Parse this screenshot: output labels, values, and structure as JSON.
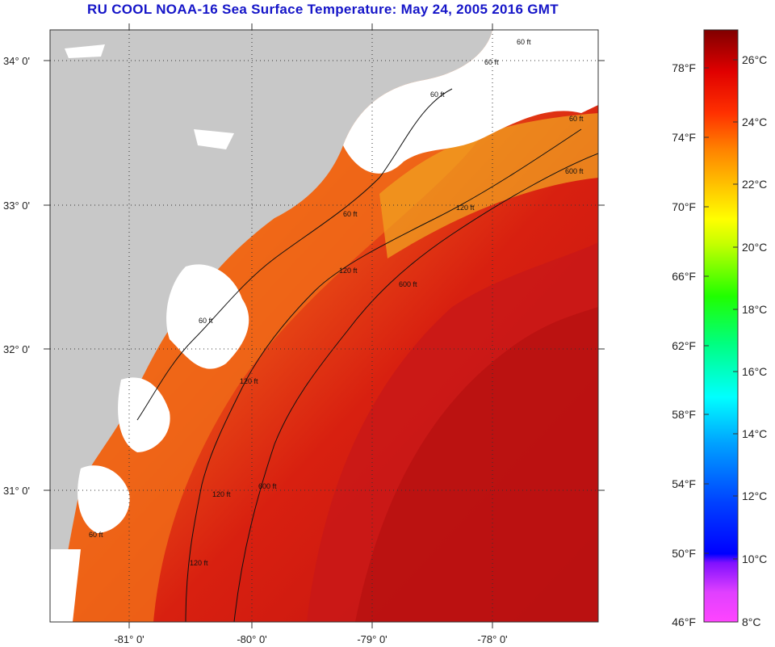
{
  "title": "RU COOL  NOAA-16  Sea Surface Temperature:  May 24, 2005 2016 GMT",
  "map": {
    "lat_labels": [
      "34° 0'",
      "33° 0'",
      "32° 0'",
      "31° 0'"
    ],
    "lon_labels": [
      "-81° 0'",
      "-80° 0'",
      "-79° 0'",
      "-78° 0'"
    ],
    "contour_labels": [
      "60 ft",
      "60 ft",
      "60 ft",
      "60 ft",
      "60 ft",
      "120 ft",
      "120 ft",
      "120 ft",
      "120 ft",
      "120 ft",
      "600 ft",
      "600 ft",
      "600 ft",
      "60 ft",
      "60 ft"
    ]
  },
  "colorbar": {
    "fahrenheit": [
      "78°F",
      "74°F",
      "70°F",
      "66°F",
      "62°F",
      "58°F",
      "54°F",
      "50°F",
      "46°F"
    ],
    "celsius": [
      "26°C",
      "24°C",
      "22°C",
      "20°C",
      "18°C",
      "16°C",
      "14°C",
      "12°C",
      "10°C",
      "8°C"
    ]
  },
  "colors": {
    "land": "#c8c8c8",
    "cloud": "#ffffff",
    "title": "#1515c8",
    "sst_warm": "#c81010",
    "sst_mid": "#f04010",
    "sst_shelf": "#f5a020"
  }
}
